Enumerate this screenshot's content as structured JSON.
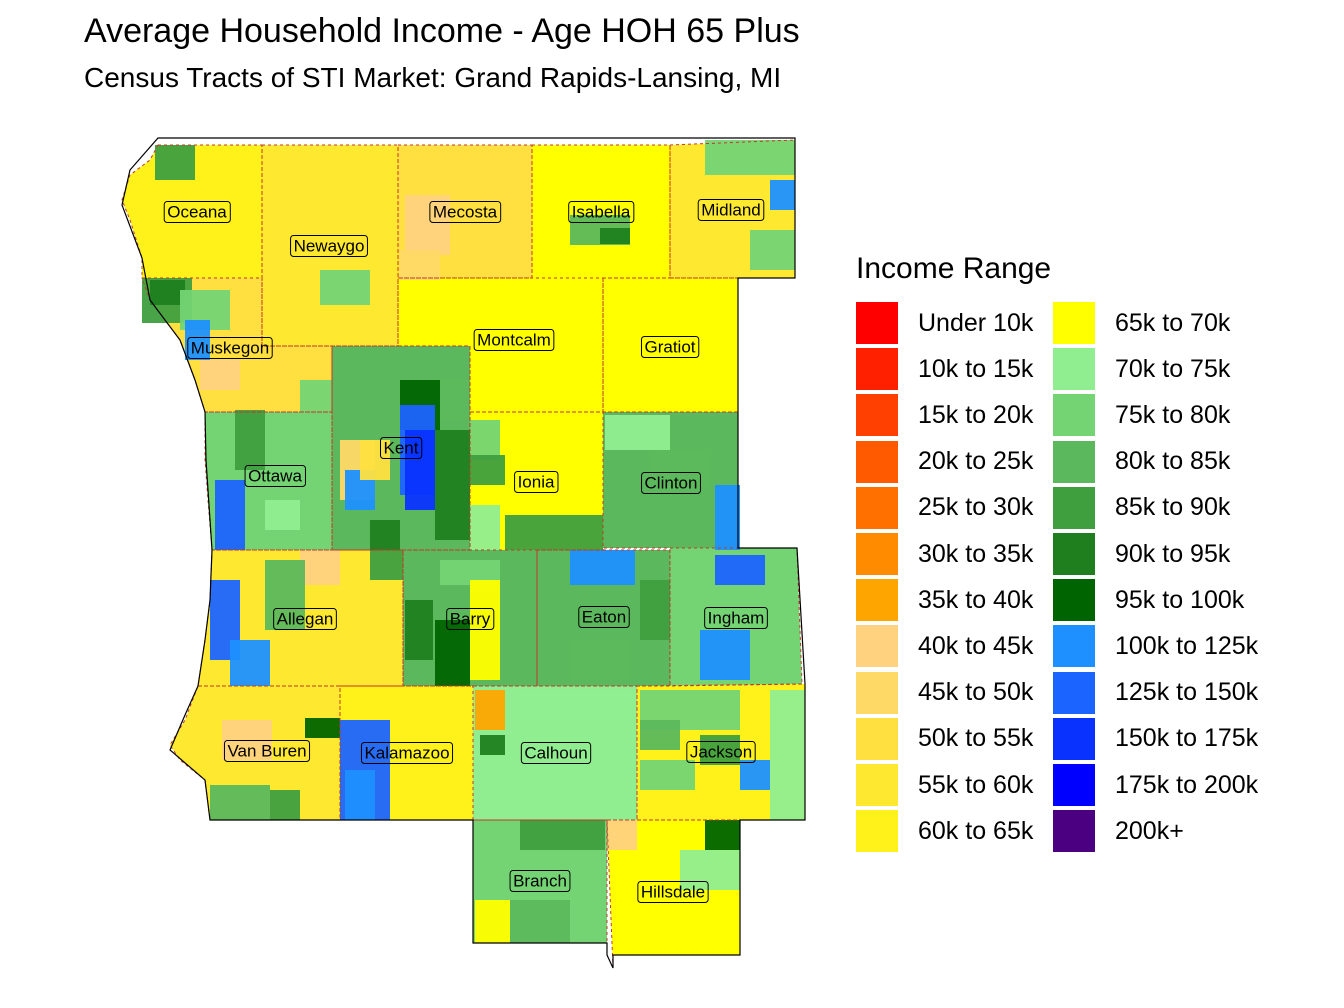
{
  "title": "Average Household Income - Age HOH 65 Plus",
  "subtitle": "Census Tracts of STI Market: Grand Rapids-Lansing, MI",
  "legend": {
    "title": "Income Range",
    "items": [
      {
        "label": "Under 10k",
        "color": "#ff0000"
      },
      {
        "label": "10k to 15k",
        "color": "#ff2000"
      },
      {
        "label": "15k to 20k",
        "color": "#ff4000"
      },
      {
        "label": "20k to 25k",
        "color": "#ff5a00"
      },
      {
        "label": "25k to 30k",
        "color": "#ff7000"
      },
      {
        "label": "30k to 35k",
        "color": "#ff8c00"
      },
      {
        "label": "35k to 40k",
        "color": "#ffa500"
      },
      {
        "label": "40k to 45k",
        "color": "#ffd27f"
      },
      {
        "label": "45k to 50k",
        "color": "#ffd966"
      },
      {
        "label": "50k to 55k",
        "color": "#ffe040"
      },
      {
        "label": "55k to 60k",
        "color": "#ffe830"
      },
      {
        "label": "60k to 65k",
        "color": "#fff11a"
      },
      {
        "label": "65k to 70k",
        "color": "#ffff00"
      },
      {
        "label": "70k to 75k",
        "color": "#90ee90"
      },
      {
        "label": "75k to 80k",
        "color": "#74d474"
      },
      {
        "label": "80k to 85k",
        "color": "#5cb85c"
      },
      {
        "label": "85k to 90k",
        "color": "#3f9f3f"
      },
      {
        "label": "90k to 95k",
        "color": "#1f7f1f"
      },
      {
        "label": "95k to 100k",
        "color": "#006400"
      },
      {
        "label": "100k to 125k",
        "color": "#1e90ff"
      },
      {
        "label": "125k to 150k",
        "color": "#1c64ff"
      },
      {
        "label": "150k to 175k",
        "color": "#0a32ff"
      },
      {
        "label": "175k to 200k",
        "color": "#0000ff"
      },
      {
        "label": "200k+",
        "color": "#4b0082"
      }
    ]
  },
  "counties": [
    {
      "name": "Oceana",
      "color": "#fff11a"
    },
    {
      "name": "Mecosta",
      "color": "#ffe040"
    },
    {
      "name": "Isabella",
      "color": "#ffff00"
    },
    {
      "name": "Midland",
      "color": "#ffe830"
    },
    {
      "name": "Newaygo",
      "color": "#ffe830"
    },
    {
      "name": "Muskegon",
      "color": "#ffe040"
    },
    {
      "name": "Montcalm",
      "color": "#ffff00"
    },
    {
      "name": "Gratiot",
      "color": "#ffff00"
    },
    {
      "name": "Kent",
      "color": "#5cb85c"
    },
    {
      "name": "Ottawa",
      "color": "#74d474"
    },
    {
      "name": "Ionia",
      "color": "#ffff00"
    },
    {
      "name": "Clinton",
      "color": "#5cb85c"
    },
    {
      "name": "Allegan",
      "color": "#ffe830"
    },
    {
      "name": "Barry",
      "color": "#5cb85c"
    },
    {
      "name": "Eaton",
      "color": "#5cb85c"
    },
    {
      "name": "Ingham",
      "color": "#74d474"
    },
    {
      "name": "Van Buren",
      "color": "#ffe830"
    },
    {
      "name": "Kalamazoo",
      "color": "#fff11a"
    },
    {
      "name": "Calhoun",
      "color": "#90ee90"
    },
    {
      "name": "Jackson",
      "color": "#fff11a"
    },
    {
      "name": "Branch",
      "color": "#74d474"
    },
    {
      "name": "Hillsdale",
      "color": "#ffff00"
    }
  ]
}
